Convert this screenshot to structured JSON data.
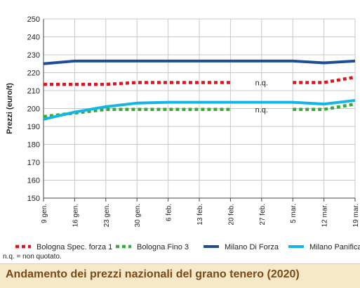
{
  "chart_data": {
    "type": "line",
    "ylabel": "Prezzi (euro/t)",
    "xlabel": "",
    "title": "",
    "ylim": [
      150,
      250
    ],
    "yticks": [
      150,
      160,
      170,
      180,
      190,
      200,
      210,
      220,
      230,
      240,
      250
    ],
    "categories": [
      "9 gen.",
      "16 gen.",
      "23 gen.",
      "30 gen.",
      "6 feb.",
      "13 feb.",
      "20 feb.",
      "27 feb.",
      "5 mar.",
      "12 mar.",
      "19 mar."
    ],
    "grid": true,
    "legend_position": "bottom",
    "series": [
      {
        "name": "Bologna Spec. forza 1",
        "color": "#e0141e",
        "style": "dotted",
        "values": [
          213.5,
          213.5,
          213.5,
          214.5,
          214.5,
          214.5,
          214.5,
          null,
          214.5,
          214.5,
          217.5
        ]
      },
      {
        "name": "Bologna Fino 3",
        "color": "#3aa935",
        "style": "dotted",
        "values": [
          195.5,
          197.5,
          199.5,
          199.5,
          199.5,
          199.5,
          199.5,
          null,
          199.5,
          199.5,
          202.5
        ]
      },
      {
        "name": "Milano Di Forza",
        "color": "#1f4e96",
        "style": "solid",
        "values": [
          225,
          226.5,
          226.5,
          226.5,
          226.5,
          226.5,
          226.5,
          226.5,
          226.5,
          225.5,
          226.5
        ]
      },
      {
        "name": "Milano Panificabile",
        "color": "#15b5e6",
        "style": "solid",
        "values": [
          194,
          198,
          201,
          203,
          203.5,
          203.5,
          203.5,
          203.5,
          203.5,
          202.5,
          204.5
        ]
      }
    ],
    "annotations": [
      {
        "text": "n.q.",
        "x": "27 feb.",
        "y": 214.5
      },
      {
        "text": "n.q.",
        "x": "27 feb.",
        "y": 199.5
      }
    ]
  },
  "note": "n.q. = non quotato.",
  "footer_title": "Andamento dei prezzi nazionali del grano tenero (2020)"
}
